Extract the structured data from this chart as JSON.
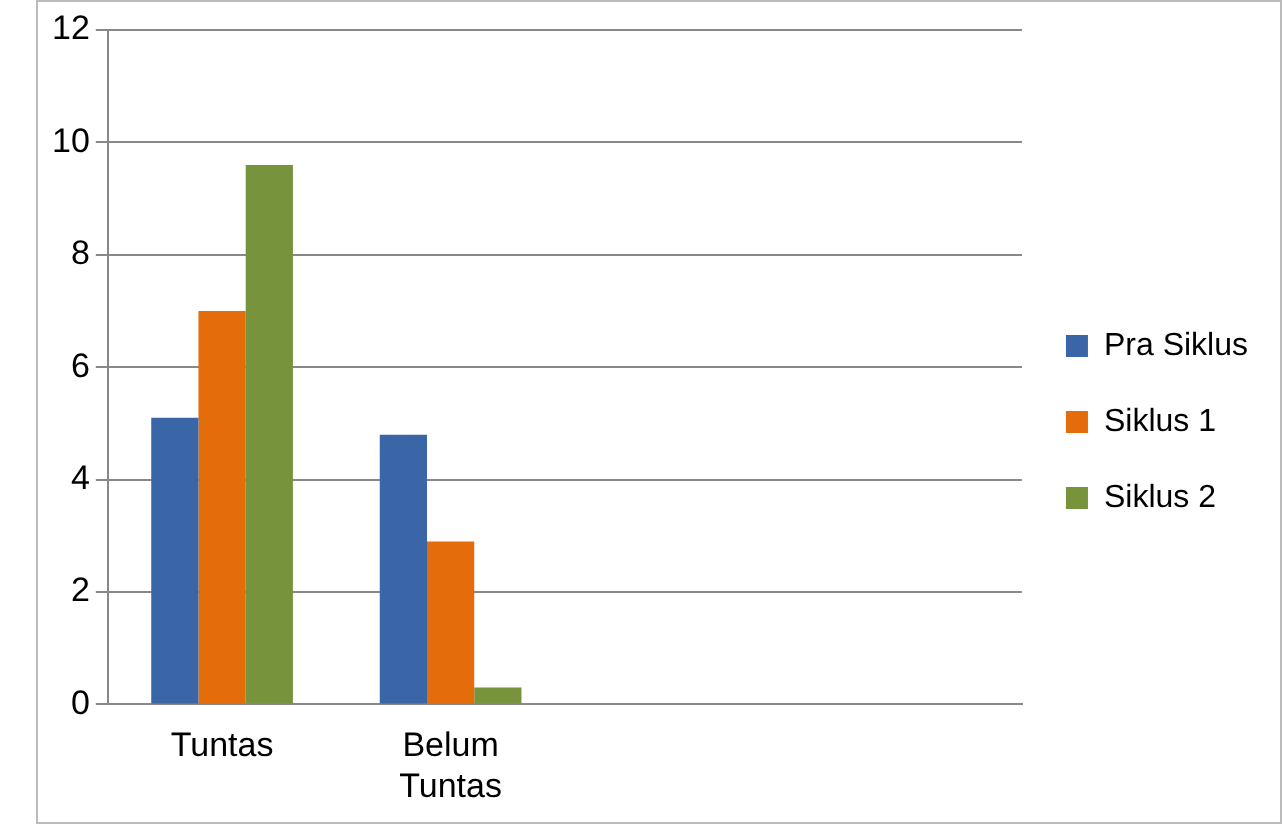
{
  "chart_data": {
    "type": "bar",
    "categories": [
      "Tuntas",
      "Belum Tuntas",
      null,
      null
    ],
    "series": [
      {
        "name": "Pra Siklus",
        "color": "#3a66a8",
        "values": [
          5.1,
          4.8,
          null,
          null
        ]
      },
      {
        "name": "Siklus 1",
        "color": "#e46c0a",
        "values": [
          7.0,
          2.9,
          null,
          null
        ]
      },
      {
        "name": "Siklus 2",
        "color": "#77933c",
        "values": [
          9.6,
          0.3,
          null,
          null
        ]
      }
    ],
    "ylim": [
      0,
      12
    ],
    "yticks": [
      0,
      2,
      4,
      6,
      8,
      10,
      12
    ],
    "grid": "y",
    "legend": "right"
  }
}
